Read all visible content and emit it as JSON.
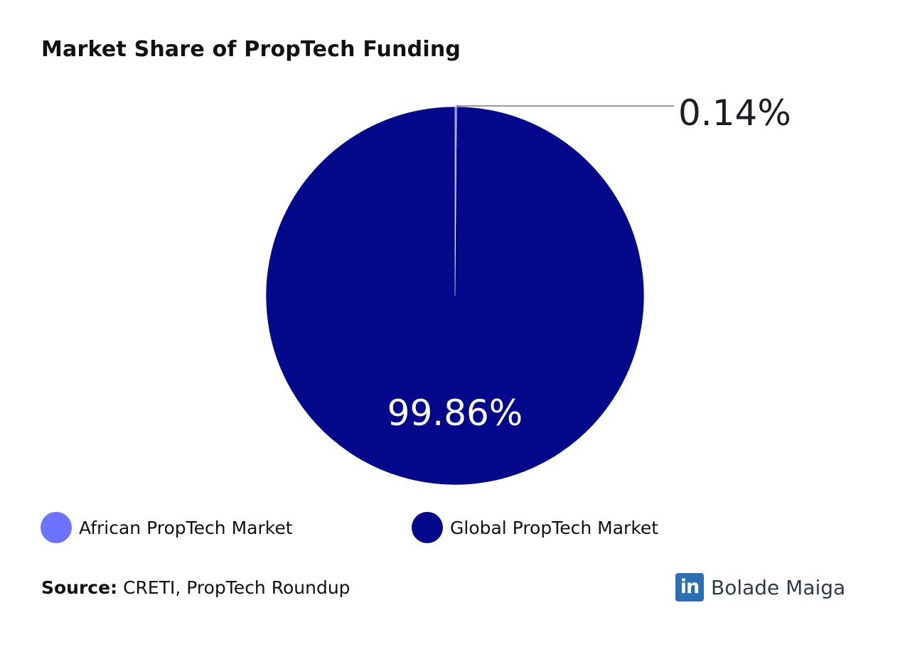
{
  "chart_data": {
    "type": "pie",
    "title": "Market Share of PropTech Funding",
    "slices": [
      {
        "name": "African PropTech Market",
        "value": 0.14,
        "label": "0.14%",
        "color": "#6c74ff"
      },
      {
        "name": "Global PropTech Market",
        "value": 99.86,
        "label": "99.86%",
        "color": "#03098a"
      }
    ]
  },
  "source": {
    "key": "Source:",
    "text": "CRETI, PropTech Roundup"
  },
  "brand": {
    "icon": "linkedin-icon",
    "logo_text": "in",
    "name": "Bolade Maiga"
  }
}
